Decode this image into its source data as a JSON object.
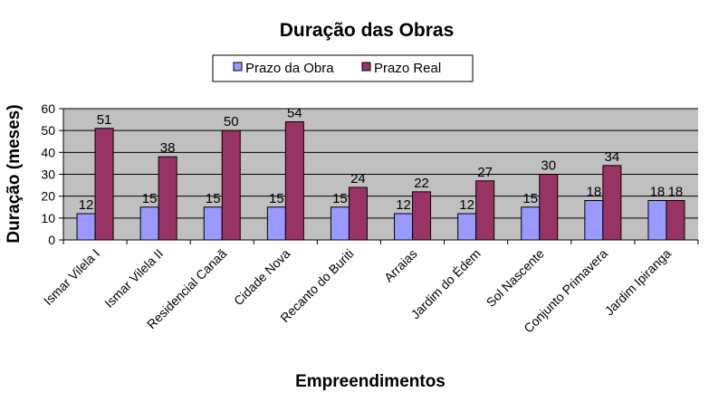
{
  "chart_data": {
    "type": "bar",
    "title": "Duração das Obras",
    "xlabel": "Empreendimentos",
    "ylabel": "Duração (meses)",
    "ylim": [
      0,
      60
    ],
    "yticks": [
      0,
      10,
      20,
      30,
      40,
      50,
      60
    ],
    "grid": true,
    "legend_position": "top-center",
    "categories": [
      "Ismar Vilela I",
      "Ismar Vilela II",
      "Residencial Canaã",
      "Cidade Nova",
      "Recanto do Buriti",
      "Arraias",
      "Jardim do Édem",
      "Sol Nascente",
      "Conjunto Primavera",
      "Jardim Ipiranga"
    ],
    "series": [
      {
        "name": "Prazo da Obra",
        "color": "#9999ff",
        "values": [
          12,
          15,
          15,
          15,
          15,
          12,
          12,
          15,
          18,
          18
        ]
      },
      {
        "name": "Prazo Real",
        "color": "#993366",
        "values": [
          51,
          38,
          50,
          54,
          24,
          22,
          27,
          30,
          34,
          18
        ]
      }
    ],
    "plot_background": "#c0c0c0"
  }
}
